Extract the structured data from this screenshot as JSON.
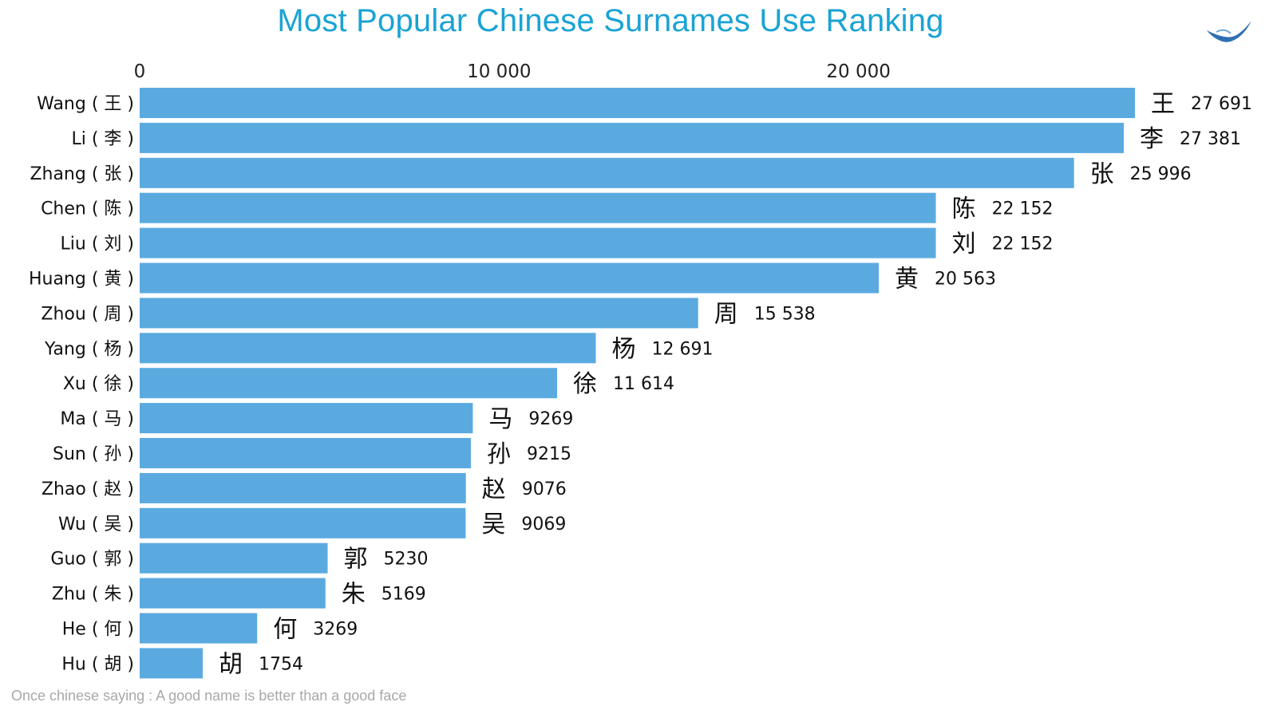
{
  "title": "Most Popular Chinese Surnames Use Ranking",
  "footnote": "Once chinese saying : A good name is better than a good face",
  "logo_icon": "bird-wing-icon",
  "colors": {
    "bar": "#5aaae0",
    "title": "#1aa3d4",
    "footnote": "#a8a8a8",
    "logo": "#2f6fb3"
  },
  "chart_data": {
    "type": "bar",
    "orientation": "horizontal",
    "title": "Most Popular Chinese Surnames Use Ranking",
    "xlabel": "",
    "ylabel": "",
    "xlim": [
      0,
      27691
    ],
    "x_axis_position": "top",
    "grid": false,
    "xticks": [
      {
        "value": 0,
        "label": "0"
      },
      {
        "value": 10000,
        "label": "10 000"
      },
      {
        "value": 20000,
        "label": "20 000"
      }
    ],
    "categories": [
      "Wang ( 王 )",
      "Li ( 李 )",
      "Zhang ( 张 )",
      "Chen ( 陈 )",
      "Liu ( 刘 )",
      "Huang ( 黄 )",
      "Zhou ( 周 )",
      "Yang ( 杨 )",
      "Xu ( 徐 )",
      "Ma ( 马 )",
      "Sun ( 孙 )",
      "Zhao ( 赵 )",
      "Wu ( 吴 )",
      "Guo ( 郭 )",
      "Zhu ( 朱 )",
      "He ( 何 )",
      "Hu ( 胡 )"
    ],
    "hanzi": [
      "王",
      "李",
      "张",
      "陈",
      "刘",
      "黄",
      "周",
      "杨",
      "徐",
      "马",
      "孙",
      "赵",
      "吴",
      "郭",
      "朱",
      "何",
      "胡"
    ],
    "values": [
      27691,
      27381,
      25996,
      22152,
      22152,
      20563,
      15538,
      12691,
      11614,
      9269,
      9215,
      9076,
      9069,
      5230,
      5169,
      3269,
      1754
    ],
    "value_labels": [
      "27 691",
      "27 381",
      "25 996",
      "22 152",
      "22 152",
      "20 563",
      "15 538",
      "12 691",
      "11 614",
      "9269",
      "9215",
      "9076",
      "9069",
      "5230",
      "5169",
      "3269",
      "1754"
    ]
  }
}
